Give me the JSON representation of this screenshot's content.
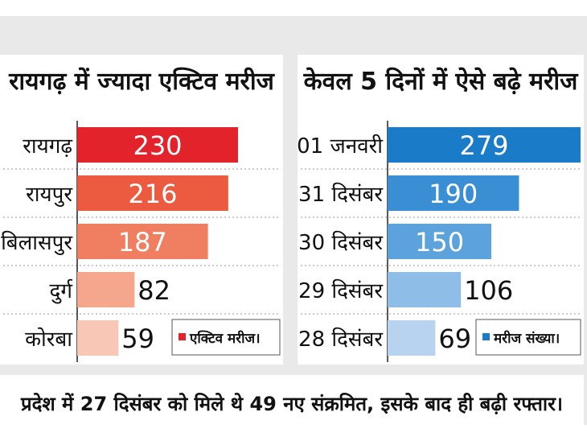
{
  "chart_data": [
    {
      "type": "bar",
      "title": "रायगढ़ में ज्यादा एक्टिव मरीज",
      "categories": [
        "रायगढ़",
        "रायपुर",
        "बिलासपुर",
        "दुर्ग",
        "कोरबा"
      ],
      "values": [
        230,
        216,
        187,
        82,
        59
      ],
      "colors": [
        "#e3232b",
        "#ec5a3f",
        "#f07e60",
        "#f5a78e",
        "#f9c7b5"
      ],
      "legend": "एक्टिव मरीज।",
      "legend_color": "#e3232b",
      "legend_position": "bottom-right"
    },
    {
      "type": "bar",
      "title": "केवल 5 दिनों में ऐसे बढ़े मरीज",
      "categories": [
        "01 जनवरी",
        "31 दिसंबर",
        "30 दिसंबर",
        "29 दिसंबर",
        "28 दिसंबर"
      ],
      "values": [
        279,
        190,
        150,
        106,
        69
      ],
      "colors": [
        "#1a7cc8",
        "#3a8fd4",
        "#5ca3dd",
        "#8ebde8",
        "#b8d3ef"
      ],
      "legend": "मरीज संख्या।",
      "legend_color": "#1a7cc8",
      "legend_position": "bottom-right"
    }
  ],
  "footer": "प्रदेश में 27 दिसंबर को मिले थे 49 नए संक्रमित, इसके बाद ही बढ़ी रफ्तार।"
}
